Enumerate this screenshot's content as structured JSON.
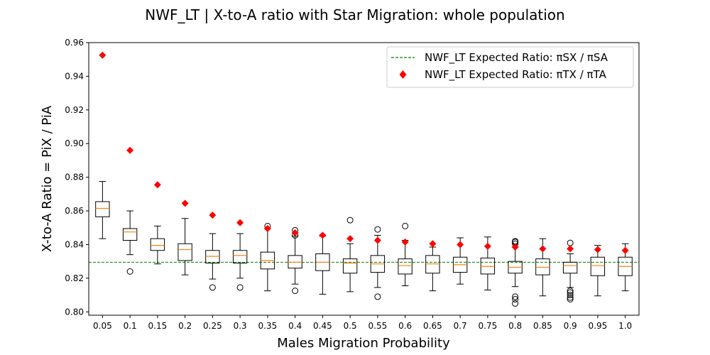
{
  "chart_data": {
    "type": "box",
    "title": "NWF_LT | X-to-A ratio with Star Migration: whole population",
    "xlabel": "Males Migration Probability",
    "ylabel": "X-to-A Ratio = PiX / PiA",
    "ylim": [
      0.798,
      0.96
    ],
    "yticks": [
      "0.80",
      "0.82",
      "0.84",
      "0.86",
      "0.88",
      "0.90",
      "0.92",
      "0.94",
      "0.96"
    ],
    "categories": [
      "0.05",
      "0.1",
      "0.15",
      "0.2",
      "0.25",
      "0.3",
      "0.35",
      "0.4",
      "0.45",
      "0.5",
      "0.55",
      "0.6",
      "0.65",
      "0.7",
      "0.75",
      "0.8",
      "0.85",
      "0.9",
      "0.95",
      "1.0"
    ],
    "boxes": [
      {
        "whislo": 0.8435,
        "q1": 0.8565,
        "med": 0.8615,
        "q3": 0.8655,
        "whishi": 0.8775,
        "fliers": []
      },
      {
        "whislo": 0.834,
        "q1": 0.8425,
        "med": 0.8475,
        "q3": 0.8495,
        "whishi": 0.86,
        "fliers": [
          0.824
        ]
      },
      {
        "whislo": 0.8285,
        "q1": 0.8365,
        "med": 0.8395,
        "q3": 0.8435,
        "whishi": 0.851,
        "fliers": []
      },
      {
        "whislo": 0.822,
        "q1": 0.8305,
        "med": 0.837,
        "q3": 0.8405,
        "whishi": 0.8555,
        "fliers": []
      },
      {
        "whislo": 0.8195,
        "q1": 0.829,
        "med": 0.833,
        "q3": 0.8365,
        "whishi": 0.8465,
        "fliers": [
          0.8145
        ]
      },
      {
        "whislo": 0.82,
        "q1": 0.829,
        "med": 0.8335,
        "q3": 0.8365,
        "whishi": 0.8465,
        "fliers": [
          0.8145
        ]
      },
      {
        "whislo": 0.8125,
        "q1": 0.8255,
        "med": 0.8305,
        "q3": 0.8355,
        "whishi": 0.8495,
        "fliers": [
          0.851
        ]
      },
      {
        "whislo": 0.8165,
        "q1": 0.826,
        "med": 0.8295,
        "q3": 0.8335,
        "whishi": 0.845,
        "fliers": [
          0.8125,
          0.8455,
          0.8485
        ]
      },
      {
        "whislo": 0.8105,
        "q1": 0.8245,
        "med": 0.8295,
        "q3": 0.8345,
        "whishi": 0.845,
        "fliers": []
      },
      {
        "whislo": 0.812,
        "q1": 0.823,
        "med": 0.829,
        "q3": 0.8315,
        "whishi": 0.8405,
        "fliers": [
          0.8545
        ]
      },
      {
        "whislo": 0.8145,
        "q1": 0.8235,
        "med": 0.8285,
        "q3": 0.8335,
        "whishi": 0.8455,
        "fliers": [
          0.809,
          0.849
        ]
      },
      {
        "whislo": 0.8155,
        "q1": 0.8225,
        "med": 0.8275,
        "q3": 0.8315,
        "whishi": 0.8425,
        "fliers": [
          0.851
        ]
      },
      {
        "whislo": 0.8125,
        "q1": 0.823,
        "med": 0.8285,
        "q3": 0.8335,
        "whishi": 0.8385,
        "fliers": []
      },
      {
        "whislo": 0.8165,
        "q1": 0.8235,
        "med": 0.828,
        "q3": 0.8325,
        "whishi": 0.844,
        "fliers": []
      },
      {
        "whislo": 0.813,
        "q1": 0.8225,
        "med": 0.827,
        "q3": 0.832,
        "whishi": 0.8445,
        "fliers": []
      },
      {
        "whislo": 0.815,
        "q1": 0.823,
        "med": 0.8265,
        "q3": 0.83,
        "whishi": 0.8385,
        "fliers": [
          0.805,
          0.8075,
          0.809,
          0.8405,
          0.8415,
          0.842
        ]
      },
      {
        "whislo": 0.8095,
        "q1": 0.822,
        "med": 0.8265,
        "q3": 0.8315,
        "whishi": 0.8435,
        "fliers": []
      },
      {
        "whislo": 0.8145,
        "q1": 0.823,
        "med": 0.8275,
        "q3": 0.8295,
        "whishi": 0.8345,
        "fliers": [
          0.8075,
          0.8085,
          0.81,
          0.8115,
          0.8125,
          0.841
        ]
      },
      {
        "whislo": 0.8095,
        "q1": 0.8215,
        "med": 0.8275,
        "q3": 0.8325,
        "whishi": 0.8395,
        "fliers": []
      },
      {
        "whislo": 0.8125,
        "q1": 0.8215,
        "med": 0.827,
        "q3": 0.8325,
        "whishi": 0.8405,
        "fliers": []
      }
    ],
    "expected_sx_sa": 0.8295,
    "expected_tx_ta": [
      0.9525,
      0.896,
      0.8755,
      0.8645,
      0.8575,
      0.853,
      0.8495,
      0.847,
      0.8455,
      0.8435,
      0.8425,
      0.8415,
      0.8405,
      0.84,
      0.839,
      0.8385,
      0.8375,
      0.8375,
      0.837,
      0.8365
    ],
    "legend": [
      {
        "label": "NWF_LT Expected Ratio: πSX / πSA",
        "style": "dashed-line",
        "color": "#008000"
      },
      {
        "label": "NWF_LT Expected Ratio: πTX / πTA",
        "style": "diamond-marker",
        "color": "#ff0000"
      }
    ],
    "legend_position": "top-right",
    "colors": {
      "median": "#ff7f0e",
      "box": "#000000",
      "expected_line": "#008000",
      "expected_marker": "#ff0000"
    },
    "grid": false
  }
}
